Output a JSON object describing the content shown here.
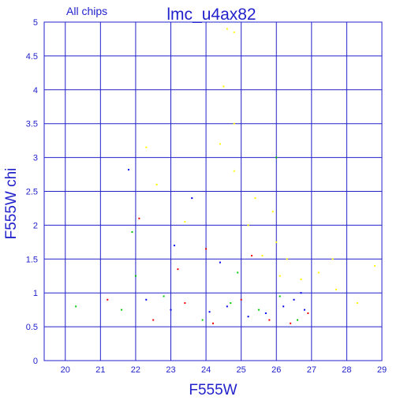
{
  "chart_data": {
    "type": "scatter",
    "title": "lmc_u4ax82",
    "subtitle": "All chips",
    "xlabel": "F555W",
    "ylabel": "F555W chi",
    "xlim": [
      19.4,
      29
    ],
    "ylim": [
      0,
      5
    ],
    "x_ticks": [
      "20",
      "21",
      "22",
      "23",
      "24",
      "25",
      "26",
      "27",
      "28",
      "29"
    ],
    "y_ticks": [
      "0",
      "0.5",
      "1",
      "1.5",
      "2",
      "2.5",
      "3",
      "3.5",
      "4",
      "4.5",
      "5"
    ],
    "grid": true,
    "axis_color": "#2222cc",
    "series": [
      {
        "color": "#0000ee",
        "points": [
          [
            22.3,
            0.9
          ],
          [
            23.0,
            0.75
          ],
          [
            24.1,
            0.72
          ],
          [
            24.6,
            0.8
          ],
          [
            25.2,
            0.65
          ],
          [
            25.7,
            0.7
          ],
          [
            26.2,
            0.8
          ],
          [
            26.5,
            0.9
          ],
          [
            26.8,
            0.75
          ],
          [
            21.8,
            2.82
          ],
          [
            23.6,
            2.4
          ],
          [
            23.1,
            1.7
          ],
          [
            24.4,
            1.45
          ],
          [
            26.7,
            1.0
          ]
        ]
      },
      {
        "color": "#ee0000",
        "points": [
          [
            21.2,
            0.9
          ],
          [
            22.5,
            0.6
          ],
          [
            23.4,
            0.85
          ],
          [
            24.2,
            0.55
          ],
          [
            25.0,
            0.9
          ],
          [
            25.8,
            0.6
          ],
          [
            26.4,
            0.55
          ],
          [
            26.9,
            0.7
          ],
          [
            22.1,
            2.1
          ],
          [
            24.0,
            1.65
          ],
          [
            25.3,
            1.55
          ],
          [
            23.2,
            1.35
          ]
        ]
      },
      {
        "color": "#00cc00",
        "points": [
          [
            20.3,
            0.8
          ],
          [
            21.6,
            0.75
          ],
          [
            22.8,
            0.95
          ],
          [
            23.9,
            0.6
          ],
          [
            24.7,
            0.85
          ],
          [
            25.5,
            0.75
          ],
          [
            26.1,
            0.95
          ],
          [
            26.6,
            0.6
          ],
          [
            22.0,
            1.25
          ],
          [
            26.0,
            3.0
          ],
          [
            21.9,
            1.9
          ],
          [
            24.9,
            1.3
          ]
        ]
      },
      {
        "color": "#ffff00",
        "points": [
          [
            24.6,
            4.9
          ],
          [
            24.8,
            4.85
          ],
          [
            24.5,
            4.05
          ],
          [
            24.8,
            3.5
          ],
          [
            24.4,
            3.2
          ],
          [
            24.8,
            2.8
          ],
          [
            25.4,
            2.4
          ],
          [
            25.2,
            2.0
          ],
          [
            25.9,
            2.2
          ],
          [
            26.0,
            1.75
          ],
          [
            26.3,
            1.5
          ],
          [
            26.7,
            1.2
          ],
          [
            27.2,
            1.3
          ],
          [
            27.7,
            1.05
          ],
          [
            28.3,
            0.85
          ],
          [
            28.8,
            1.4
          ],
          [
            22.3,
            3.15
          ],
          [
            22.6,
            2.6
          ],
          [
            23.4,
            2.05
          ],
          [
            26.1,
            1.25
          ],
          [
            25.6,
            1.55
          ],
          [
            27.6,
            1.5
          ]
        ]
      }
    ]
  }
}
